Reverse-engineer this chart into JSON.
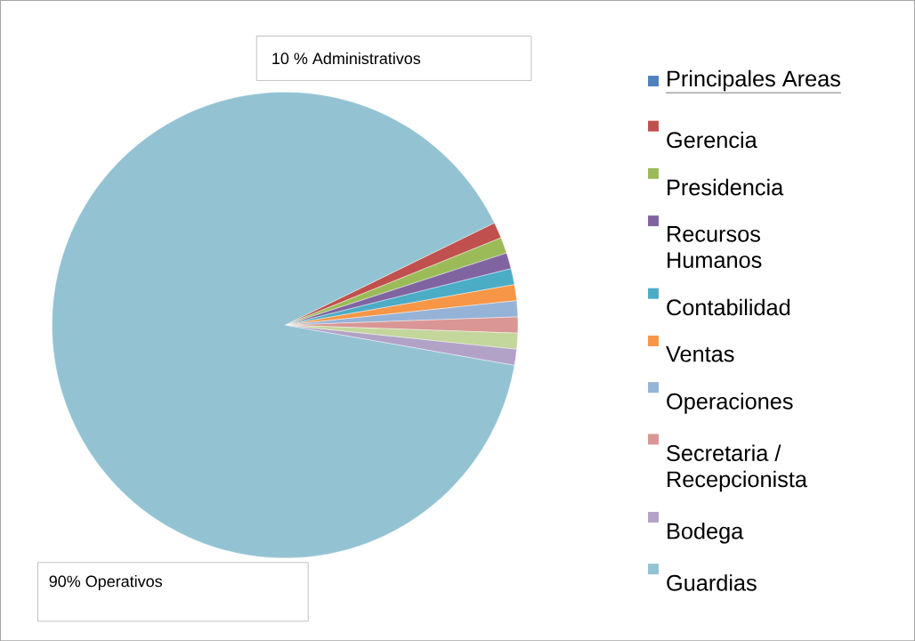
{
  "chart_data": {
    "type": "pie",
    "categories": [
      "Principales Areas",
      "Gerencia",
      "Presidencia",
      "Recursos Humanos",
      "Contabilidad",
      "Ventas",
      "Operaciones",
      "Secretaria / Recepcionista",
      null,
      "Bodega",
      "Guardias"
    ],
    "values": [
      0,
      1.11,
      1.11,
      1.11,
      1.11,
      1.11,
      1.11,
      1.11,
      1.11,
      1.11,
      90
    ],
    "colors": [
      "#4f81bd",
      "#c0504d",
      "#9bbb59",
      "#8064a2",
      "#4bacc6",
      "#f79646",
      "#95b3d7",
      "#d99694",
      "#c3d69b",
      "#b3a2c7",
      "#93c3d3"
    ],
    "annotations": [
      "10 % Administrativos",
      "90% Operativos"
    ],
    "legend": "right"
  }
}
